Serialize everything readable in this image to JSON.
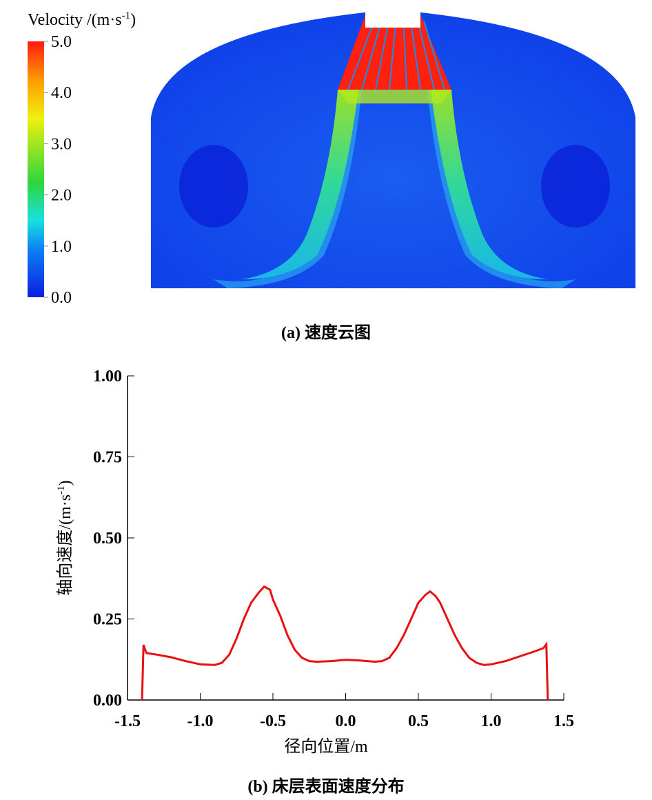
{
  "contour": {
    "colorbar_title": "Velocity /(m·s",
    "colorbar_title_sup": "-1",
    "colorbar_title_end": ")",
    "colorbar_ticks": [
      "5.0",
      "4.0",
      "3.0",
      "2.0",
      "1.0",
      "0.0"
    ],
    "colorbar_range": [
      0,
      5
    ],
    "colors": [
      "#0a1fe0",
      "#0d7cf5",
      "#18e0e0",
      "#2fd63a",
      "#f0f010",
      "#ff9a00",
      "#ff1a10"
    ],
    "caption": "(a) 速度云图"
  },
  "chart_data": {
    "type": "line",
    "title": "",
    "caption": "(b) 床层表面速度分布",
    "xlabel": "径向位置/m",
    "ylabel": "轴向速度/(m·s",
    "ylabel_sup": "-1",
    "ylabel_end": ")",
    "xlim": [
      -1.5,
      1.5
    ],
    "ylim": [
      0,
      1.0
    ],
    "xticks": [
      "-1.5",
      "-1.0",
      "-0.5",
      "0.0",
      "0.5",
      "1.0",
      "1.5"
    ],
    "yticks": [
      "0.00",
      "0.25",
      "0.50",
      "0.75",
      "1.00"
    ],
    "series": [
      {
        "name": "axial velocity",
        "color": "#e81010",
        "x": [
          -1.4,
          -1.39,
          -1.37,
          -1.3,
          -1.2,
          -1.1,
          -1.0,
          -0.9,
          -0.85,
          -0.8,
          -0.75,
          -0.7,
          -0.65,
          -0.6,
          -0.56,
          -0.52,
          -0.5,
          -0.45,
          -0.4,
          -0.35,
          -0.3,
          -0.25,
          -0.2,
          -0.1,
          0.0,
          0.1,
          0.2,
          0.25,
          0.3,
          0.35,
          0.4,
          0.45,
          0.5,
          0.55,
          0.58,
          0.62,
          0.65,
          0.7,
          0.75,
          0.8,
          0.85,
          0.9,
          0.95,
          1.0,
          1.1,
          1.2,
          1.3,
          1.36,
          1.38,
          1.39
        ],
        "y": [
          0.0,
          0.17,
          0.145,
          0.14,
          0.132,
          0.12,
          0.11,
          0.108,
          0.115,
          0.14,
          0.19,
          0.25,
          0.3,
          0.33,
          0.35,
          0.34,
          0.31,
          0.26,
          0.2,
          0.155,
          0.13,
          0.12,
          0.118,
          0.12,
          0.124,
          0.122,
          0.118,
          0.12,
          0.13,
          0.16,
          0.2,
          0.25,
          0.3,
          0.325,
          0.335,
          0.32,
          0.3,
          0.25,
          0.2,
          0.16,
          0.13,
          0.115,
          0.108,
          0.11,
          0.12,
          0.135,
          0.15,
          0.16,
          0.172,
          0.0
        ]
      }
    ]
  }
}
